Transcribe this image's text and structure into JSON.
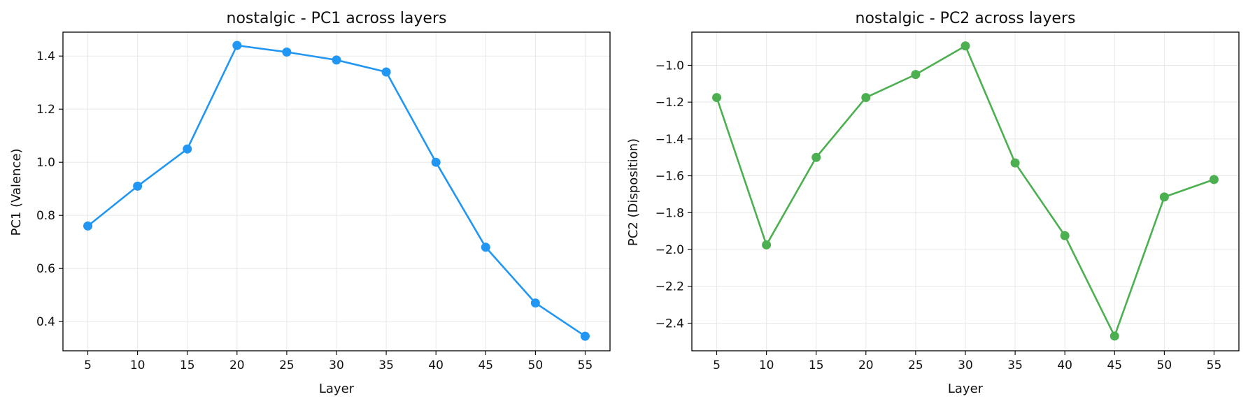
{
  "chart_data": [
    {
      "type": "line",
      "title": "nostalgic - PC1 across layers",
      "xlabel": "Layer",
      "ylabel": "PC1 (Valence)",
      "x": [
        5,
        10,
        15,
        20,
        25,
        30,
        35,
        40,
        45,
        50,
        55
      ],
      "xlim": [
        2.5,
        57.5
      ],
      "ylim": [
        0.29,
        1.49
      ],
      "xticks": [
        5,
        10,
        15,
        20,
        25,
        30,
        35,
        40,
        45,
        50,
        55
      ],
      "yticks": [
        0.4,
        0.6,
        0.8,
        1.0,
        1.2,
        1.4
      ],
      "ytick_labels": [
        "0.4",
        "0.6",
        "0.8",
        "1.0",
        "1.2",
        "1.4"
      ],
      "grid": true,
      "series": [
        {
          "color": "#2196f3",
          "marker": "circle",
          "values": [
            0.76,
            0.91,
            1.05,
            1.44,
            1.415,
            1.385,
            1.34,
            1.0,
            0.68,
            0.47,
            0.345
          ]
        }
      ]
    },
    {
      "type": "line",
      "title": "nostalgic - PC2 across layers",
      "xlabel": "Layer",
      "ylabel": "PC2 (Disposition)",
      "x": [
        5,
        10,
        15,
        20,
        25,
        30,
        35,
        40,
        45,
        50,
        55
      ],
      "xlim": [
        2.5,
        57.5
      ],
      "ylim": [
        -2.55,
        -0.82
      ],
      "xticks": [
        5,
        10,
        15,
        20,
        25,
        30,
        35,
        40,
        45,
        50,
        55
      ],
      "yticks": [
        -2.4,
        -2.2,
        -2.0,
        -1.8,
        -1.6,
        -1.4,
        -1.2,
        -1.0
      ],
      "ytick_labels": [
        "−2.4",
        "−2.2",
        "−2.0",
        "−1.8",
        "−1.6",
        "−1.4",
        "−1.2",
        "−1.0"
      ],
      "grid": true,
      "series": [
        {
          "color": "#4caf50",
          "marker": "circle",
          "values": [
            -1.175,
            -1.975,
            -1.5,
            -1.175,
            -1.05,
            -0.895,
            -1.53,
            -1.925,
            -2.47,
            -1.715,
            -1.62
          ]
        }
      ]
    }
  ]
}
